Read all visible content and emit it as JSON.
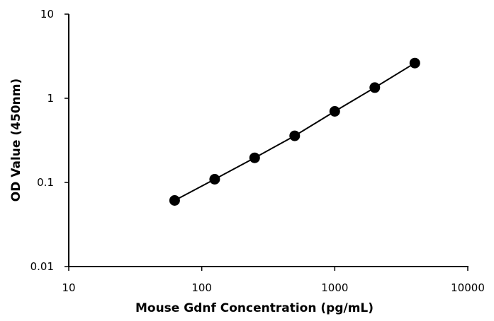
{
  "chart_data": {
    "type": "line",
    "title": "",
    "xlabel": "Mouse Gdnf Concentration (pg/mL)",
    "ylabel": "OD Value (450nm)",
    "x_scale": "log",
    "y_scale": "log",
    "xlim": [
      10,
      10000
    ],
    "ylim": [
      0.01,
      10
    ],
    "x_ticks": [
      10,
      100,
      1000,
      10000
    ],
    "x_tick_labels": [
      "10",
      "100",
      "1000",
      "10000"
    ],
    "y_ticks": [
      0.01,
      0.1,
      1,
      10
    ],
    "y_tick_labels": [
      "0.01",
      "0.1",
      "1",
      "10"
    ],
    "grid": false,
    "legend": "none",
    "series": [
      {
        "x": [
          62.5,
          125,
          250,
          500,
          1000,
          2000,
          4000
        ],
        "y": [
          0.061,
          0.109,
          0.196,
          0.358,
          0.699,
          1.34,
          2.62
        ],
        "marker": "circle",
        "color": "#000000"
      }
    ]
  }
}
